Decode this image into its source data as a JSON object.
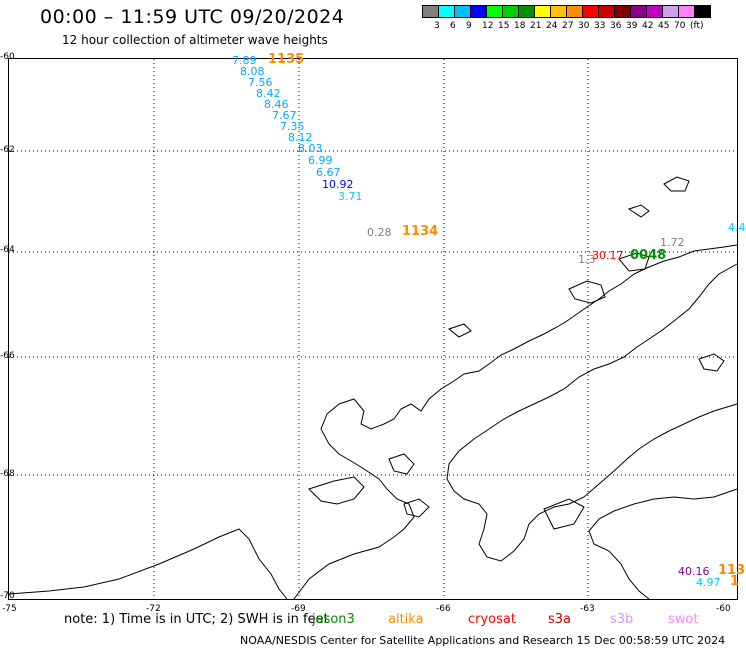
{
  "header": {
    "title": "00:00 – 11:59 UTC 09/20/2024",
    "subtitle": "12 hour collection of altimeter wave heights"
  },
  "legend": {
    "colors": [
      "#808080",
      "#00ffff",
      "#00c0ff",
      "#0000ff",
      "#00ff00",
      "#00d000",
      "#009000",
      "#ffff00",
      "#ffc000",
      "#ff8c00",
      "#ff0000",
      "#c80000",
      "#800000",
      "#8b008b",
      "#c000c0",
      "#d0a0f0",
      "#ff80ff",
      "#000000"
    ],
    "labels": [
      "3",
      "6",
      "9",
      "12",
      "15",
      "18",
      "21",
      "24",
      "27",
      "30",
      "33",
      "36",
      "39",
      "42",
      "45",
      "70",
      "(ft)"
    ]
  },
  "axes": {
    "lat_labels": [
      "-60",
      "-62",
      "-64",
      "-66",
      "-68",
      "-70"
    ],
    "lon_labels": [
      "-75",
      "-72",
      "-69",
      "-66",
      "-63",
      "-60"
    ]
  },
  "observations": [
    {
      "text": "7.89",
      "color": "#00aaff",
      "big": false
    },
    {
      "text": "1135",
      "color": "#ff8c00",
      "big": true
    },
    {
      "text": "8.08",
      "color": "#00aaff",
      "big": false
    },
    {
      "text": "7.56",
      "color": "#00aaff",
      "big": false
    },
    {
      "text": "8.42",
      "color": "#00aaff",
      "big": false
    },
    {
      "text": "8.46",
      "color": "#00aaff",
      "big": false
    },
    {
      "text": "7.67",
      "color": "#00aaff",
      "big": false
    },
    {
      "text": "7.35",
      "color": "#00aaff",
      "big": false
    },
    {
      "text": "8.12",
      "color": "#00aaff",
      "big": false
    },
    {
      "text": "8.03",
      "color": "#00aaff",
      "big": false
    },
    {
      "text": "6.99",
      "color": "#00aaff",
      "big": false
    },
    {
      "text": "6.67",
      "color": "#00aaff",
      "big": false
    },
    {
      "text": "10.92",
      "color": "#0000ff",
      "big": false
    },
    {
      "text": "3.71",
      "color": "#00ccff",
      "big": false
    },
    {
      "text": "0.28",
      "color": "#808080",
      "big": false
    },
    {
      "text": "1134",
      "color": "#ff8c00",
      "big": true
    },
    {
      "text": "1.72",
      "color": "#808080",
      "big": false
    },
    {
      "text": "1.3",
      "color": "#808080",
      "big": false
    },
    {
      "text": "30.17",
      "color": "#ff0000",
      "big": false
    },
    {
      "text": "0048",
      "color": "#009000",
      "big": true
    },
    {
      "text": "4.4",
      "color": "#00ccff",
      "big": false
    },
    {
      "text": "40.16",
      "color": "#8b008b",
      "big": false
    },
    {
      "text": "113",
      "color": "#ff8c00",
      "big": true
    },
    {
      "text": "4.97",
      "color": "#00ccff",
      "big": false
    },
    {
      "text": "1",
      "color": "#ff8c00",
      "big": true
    }
  ],
  "footer": {
    "note": "note: 1) Time is in UTC; 2) SWH is in feet",
    "satellites": [
      {
        "name": "jason3",
        "color": "#009000"
      },
      {
        "name": "altika",
        "color": "#ff8c00"
      },
      {
        "name": "cryosat",
        "color": "#ff0000"
      },
      {
        "name": "s3a",
        "color": "#c80000"
      },
      {
        "name": "s3b",
        "color": "#c8a0f0"
      },
      {
        "name": "swot",
        "color": "#ff80ff"
      }
    ],
    "credit": "NOAA/NESDIS Center for Satellite Applications and Research   15 Dec 00:58:59 UTC 2024"
  }
}
